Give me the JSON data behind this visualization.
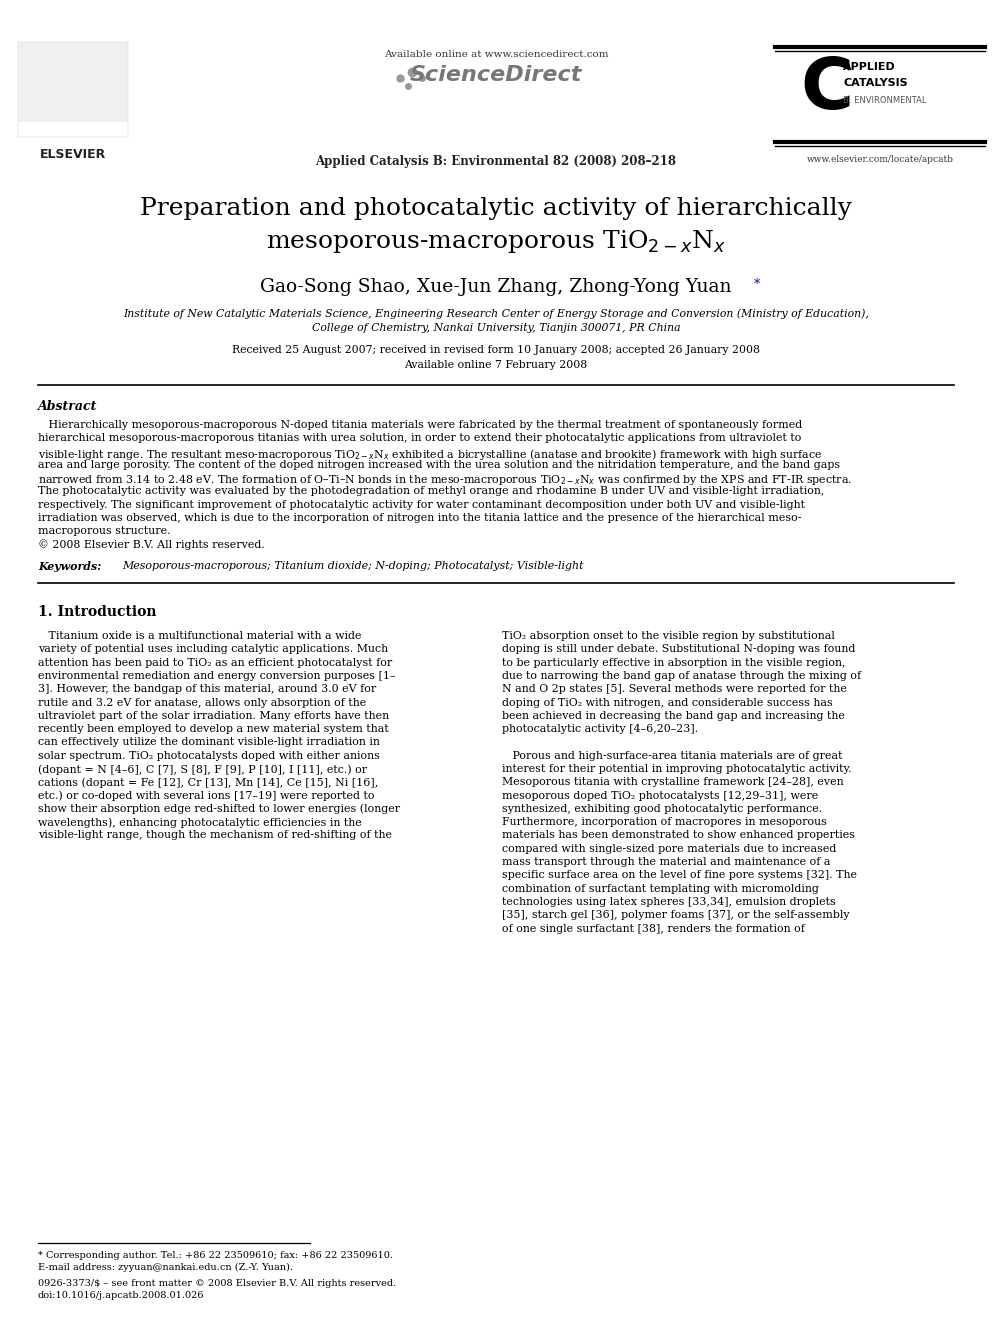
{
  "bg_color": "#ffffff",
  "header_line1": "Available online at www.sciencedirect.com",
  "journal_info": "Applied Catalysis B: Environmental 82 (2008) 208–218",
  "elsevier_text": "ELSEVIER",
  "sciencedirect_text": "ScienceDirect",
  "applied_catalysis_line1": "APPLIED",
  "applied_catalysis_line2": "CATALYSIS",
  "applied_catalysis_line3": "B. ENVIRONMENTAL",
  "journal_url": "www.elsevier.com/locate/apcatb",
  "paper_title_line1": "Preparation and photocatalytic activity of hierarchically",
  "paper_title_line2": "mesoporous-macroporous TiO$_{2-x}$N$_x$",
  "authors": "Gao-Song Shao, Xue-Jun Zhang, Zhong-Yong Yuan",
  "affiliation1": "Institute of New Catalytic Materials Science, Engineering Research Center of Energy Storage and Conversion (Ministry of Education),",
  "affiliation2": "College of Chemistry, Nankai University, Tianjin 300071, PR China",
  "received": "Received 25 August 2007; received in revised form 10 January 2008; accepted 26 January 2008",
  "available": "Available online 7 February 2008",
  "abstract_title": "Abstract",
  "keywords_label": "Keywords:",
  "keywords_text": "Mesoporous-macroporous; Titanium dioxide; N-doping; Photocatalyst; Visible-light",
  "section1_title": "1. Introduction",
  "footnote_star": "* Corresponding author. Tel.: +86 22 23509610; fax: +86 22 23509610.",
  "footnote_email": "E-mail address: zyyuan@nankai.edu.cn (Z.-Y. Yuan).",
  "footnote_issn": "0926-3373/$ – see front matter © 2008 Elsevier B.V. All rights reserved.",
  "footnote_doi": "doi:10.1016/j.apcatb.2008.01.026",
  "abstract_lines": [
    "   Hierarchically mesoporous-macroporous N-doped titania materials were fabricated by the thermal treatment of spontaneously formed",
    "hierarchical mesoporous-macroporous titanias with urea solution, in order to extend their photocatalytic applications from ultraviolet to",
    "visible-light range. The resultant meso-macroporous TiO$_{2-x}$N$_x$ exhibited a bicrystalline (anatase and brookite) framework with high surface",
    "area and large porosity. The content of the doped nitrogen increased with the urea solution and the nitridation temperature, and the band gaps",
    "narrowed from 3.14 to 2.48 eV. The formation of O–Ti–N bonds in the meso-macroporous TiO$_{2-x}$N$_x$ was confirmed by the XPS and FT-IR spectra.",
    "The photocatalytic activity was evaluated by the photodegradation of methyl orange and rhodamine B under UV and visible-light irradiation,",
    "respectively. The significant improvement of photocatalytic activity for water contaminant decomposition under both UV and visible-light",
    "irradiation was observed, which is due to the incorporation of nitrogen into the titania lattice and the presence of the hierarchical meso-",
    "macroporous structure.",
    "© 2008 Elsevier B.V. All rights reserved."
  ],
  "col1_lines": [
    "   Titanium oxide is a multifunctional material with a wide",
    "variety of potential uses including catalytic applications. Much",
    "attention has been paid to TiO₂ as an efficient photocatalyst for",
    "environmental remediation and energy conversion purposes [1–",
    "3]. However, the bandgap of this material, around 3.0 eV for",
    "rutile and 3.2 eV for anatase, allows only absorption of the",
    "ultraviolet part of the solar irradiation. Many efforts have then",
    "recently been employed to develop a new material system that",
    "can effectively utilize the dominant visible-light irradiation in",
    "solar spectrum. TiO₂ photocatalysts doped with either anions",
    "(dopant = N [4–6], C [7], S [8], F [9], P [10], I [11], etc.) or",
    "cations (dopant = Fe [12], Cr [13], Mn [14], Ce [15], Ni [16],",
    "etc.) or co-doped with several ions [17–19] were reported to",
    "show their absorption edge red-shifted to lower energies (longer",
    "wavelengths), enhancing photocatalytic efficiencies in the",
    "visible-light range, though the mechanism of red-shifting of the"
  ],
  "col2_lines": [
    "TiO₂ absorption onset to the visible region by substitutional",
    "doping is still under debate. Substitutional N-doping was found",
    "to be particularly effective in absorption in the visible region,",
    "due to narrowing the band gap of anatase through the mixing of",
    "N and O 2p states [5]. Several methods were reported for the",
    "doping of TiO₂ with nitrogen, and considerable success has",
    "been achieved in decreasing the band gap and increasing the",
    "photocatalytic activity [4–6,20–23].",
    "",
    "   Porous and high-surface-area titania materials are of great",
    "interest for their potential in improving photocatalytic activity.",
    "Mesoporous titania with crystalline framework [24–28], even",
    "mesoporous doped TiO₂ photocatalysts [12,29–31], were",
    "synthesized, exhibiting good photocatalytic performance.",
    "Furthermore, incorporation of macropores in mesoporous",
    "materials has been demonstrated to show enhanced properties",
    "compared with single-sized pore materials due to increased",
    "mass transport through the material and maintenance of a",
    "specific surface area on the level of fine pore systems [32]. The",
    "combination of surfactant templating with micromolding",
    "technologies using latex spheres [33,34], emulsion droplets",
    "[35], starch gel [36], polymer foams [37], or the self-assembly",
    "of one single surfactant [38], renders the formation of"
  ]
}
